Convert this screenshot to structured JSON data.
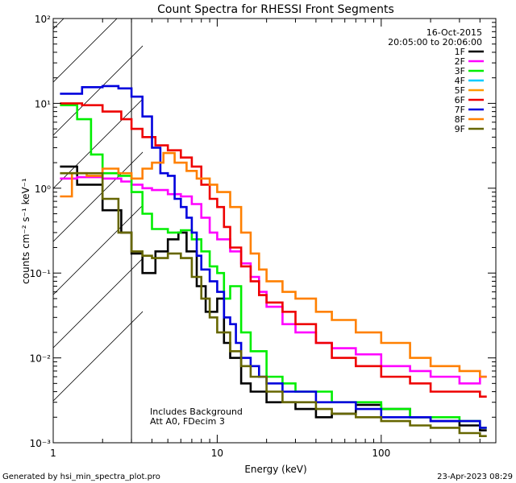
{
  "chart_data": {
    "type": "line",
    "title": "Count Spectra for RHESSI Front Segments",
    "xlabel": "Energy (keV)",
    "ylabel": "counts cm⁻² s⁻¹ keV⁻¹",
    "xscale": "log",
    "yscale": "log",
    "xlim": [
      1,
      500
    ],
    "ylim": [
      0.001,
      100
    ],
    "x_ticks": [
      "1",
      "10",
      "100"
    ],
    "y_ticks": [
      "10⁻³",
      "10⁻²",
      "10⁻¹",
      "10⁰",
      "10¹",
      "10²"
    ],
    "attenuator_threshold_kev": 3,
    "date": "16-Oct-2015",
    "time_range": "20:05:00 to 20:06:00",
    "annotation_lines": [
      "Includes Background",
      "Att A0, FDecim 3"
    ],
    "footer_left": "Generated by hsi_min_spectra_plot.pro",
    "footer_right": "23-Apr-2023 08:29",
    "series": [
      {
        "name": "1F",
        "color": "#000000",
        "points": [
          [
            1.1,
            1.8
          ],
          [
            1.4,
            1.1
          ],
          [
            2,
            0.55
          ],
          [
            2.6,
            0.3
          ],
          [
            3,
            0.17
          ],
          [
            3.5,
            0.1
          ],
          [
            4.2,
            0.18
          ],
          [
            5,
            0.25
          ],
          [
            5.8,
            0.3
          ],
          [
            6.5,
            0.18
          ],
          [
            7.5,
            0.07
          ],
          [
            8.5,
            0.035
          ],
          [
            10,
            0.05
          ],
          [
            11,
            0.015
          ],
          [
            12,
            0.01
          ],
          [
            14,
            0.005
          ],
          [
            16,
            0.004
          ],
          [
            20,
            0.003
          ],
          [
            25,
            0.003
          ],
          [
            30,
            0.0025
          ],
          [
            40,
            0.002
          ],
          [
            50,
            0.0022
          ],
          [
            70,
            0.0028
          ],
          [
            100,
            0.0025
          ],
          [
            150,
            0.002
          ],
          [
            200,
            0.0018
          ],
          [
            300,
            0.0016
          ],
          [
            400,
            0.0014
          ]
        ]
      },
      {
        "name": "2F",
        "color": "#ff00ff",
        "points": [
          [
            1.1,
            1.3
          ],
          [
            1.4,
            1.35
          ],
          [
            2,
            1.3
          ],
          [
            2.6,
            1.2
          ],
          [
            3,
            1.1
          ],
          [
            3.5,
            1.0
          ],
          [
            4,
            0.95
          ],
          [
            5,
            0.85
          ],
          [
            6,
            0.8
          ],
          [
            7,
            0.65
          ],
          [
            8,
            0.45
          ],
          [
            9,
            0.3
          ],
          [
            10,
            0.25
          ],
          [
            12,
            0.18
          ],
          [
            14,
            0.13
          ],
          [
            16,
            0.09
          ],
          [
            18,
            0.06
          ],
          [
            20,
            0.04
          ],
          [
            25,
            0.025
          ],
          [
            30,
            0.02
          ],
          [
            40,
            0.015
          ],
          [
            50,
            0.013
          ],
          [
            70,
            0.011
          ],
          [
            100,
            0.008
          ],
          [
            150,
            0.007
          ],
          [
            200,
            0.006
          ],
          [
            300,
            0.005
          ],
          [
            400,
            0.006
          ]
        ]
      },
      {
        "name": "3F",
        "color": "#00ee00",
        "points": [
          [
            1.1,
            9.5
          ],
          [
            1.4,
            6.5
          ],
          [
            1.7,
            2.5
          ],
          [
            2,
            1.5
          ],
          [
            2.5,
            1.4
          ],
          [
            3,
            0.9
          ],
          [
            3.5,
            0.5
          ],
          [
            4,
            0.33
          ],
          [
            5,
            0.3
          ],
          [
            6,
            0.32
          ],
          [
            7,
            0.25
          ],
          [
            8,
            0.18
          ],
          [
            9,
            0.12
          ],
          [
            10,
            0.1
          ],
          [
            11,
            0.05
          ],
          [
            12,
            0.07
          ],
          [
            14,
            0.02
          ],
          [
            16,
            0.012
          ],
          [
            20,
            0.006
          ],
          [
            25,
            0.005
          ],
          [
            30,
            0.004
          ],
          [
            40,
            0.004
          ],
          [
            50,
            0.003
          ],
          [
            70,
            0.003
          ],
          [
            100,
            0.0025
          ],
          [
            150,
            0.002
          ],
          [
            200,
            0.002
          ],
          [
            300,
            0.0018
          ],
          [
            400,
            0.0015
          ]
        ]
      },
      {
        "name": "4F",
        "color": "#00ccff",
        "points": []
      },
      {
        "name": "5F",
        "color": "#ff9900",
        "points": []
      },
      {
        "name": "6F",
        "color": "#ee0000",
        "points": [
          [
            1.1,
            10
          ],
          [
            1.5,
            9.5
          ],
          [
            2,
            8
          ],
          [
            2.6,
            6.5
          ],
          [
            3,
            5
          ],
          [
            3.5,
            4
          ],
          [
            4.2,
            3.2
          ],
          [
            5,
            2.8
          ],
          [
            6,
            2.3
          ],
          [
            7,
            1.8
          ],
          [
            8,
            1.1
          ],
          [
            9,
            0.75
          ],
          [
            10,
            0.6
          ],
          [
            11,
            0.35
          ],
          [
            12,
            0.2
          ],
          [
            14,
            0.12
          ],
          [
            16,
            0.08
          ],
          [
            18,
            0.055
          ],
          [
            20,
            0.045
          ],
          [
            25,
            0.035
          ],
          [
            30,
            0.025
          ],
          [
            40,
            0.015
          ],
          [
            50,
            0.01
          ],
          [
            70,
            0.008
          ],
          [
            100,
            0.006
          ],
          [
            150,
            0.005
          ],
          [
            200,
            0.004
          ],
          [
            300,
            0.004
          ],
          [
            400,
            0.0035
          ]
        ]
      },
      {
        "name": "7F",
        "color": "#0000dd",
        "points": [
          [
            1.1,
            13
          ],
          [
            1.5,
            15.5
          ],
          [
            2,
            16
          ],
          [
            2.5,
            15
          ],
          [
            3,
            12
          ],
          [
            3.5,
            7
          ],
          [
            4,
            3
          ],
          [
            4.5,
            1.5
          ],
          [
            5,
            1.4
          ],
          [
            5.5,
            0.75
          ],
          [
            6,
            0.6
          ],
          [
            6.5,
            0.45
          ],
          [
            7,
            0.3
          ],
          [
            7.5,
            0.16
          ],
          [
            8,
            0.11
          ],
          [
            9,
            0.08
          ],
          [
            10,
            0.06
          ],
          [
            11,
            0.03
          ],
          [
            12,
            0.025
          ],
          [
            13,
            0.015
          ],
          [
            14,
            0.01
          ],
          [
            16,
            0.008
          ],
          [
            18,
            0.006
          ],
          [
            20,
            0.005
          ],
          [
            25,
            0.004
          ],
          [
            30,
            0.004
          ],
          [
            40,
            0.003
          ],
          [
            50,
            0.003
          ],
          [
            70,
            0.0025
          ],
          [
            100,
            0.002
          ],
          [
            150,
            0.002
          ],
          [
            200,
            0.0018
          ],
          [
            300,
            0.0018
          ],
          [
            400,
            0.0015
          ]
        ]
      },
      {
        "name": "8F",
        "color": "#ff8000",
        "points": [
          [
            1.1,
            0.8
          ],
          [
            1.3,
            1.5
          ],
          [
            1.6,
            1.4
          ],
          [
            2,
            1.7
          ],
          [
            2.5,
            1.5
          ],
          [
            3,
            1.3
          ],
          [
            3.5,
            1.7
          ],
          [
            4,
            2.0
          ],
          [
            4.7,
            2.6
          ],
          [
            5.5,
            2.0
          ],
          [
            6.5,
            1.6
          ],
          [
            7.5,
            1.3
          ],
          [
            9,
            1.1
          ],
          [
            10,
            0.9
          ],
          [
            12,
            0.6
          ],
          [
            14,
            0.3
          ],
          [
            16,
            0.17
          ],
          [
            18,
            0.11
          ],
          [
            20,
            0.08
          ],
          [
            25,
            0.06
          ],
          [
            30,
            0.05
          ],
          [
            40,
            0.035
          ],
          [
            50,
            0.028
          ],
          [
            70,
            0.02
          ],
          [
            100,
            0.015
          ],
          [
            150,
            0.01
          ],
          [
            200,
            0.008
          ],
          [
            300,
            0.007
          ],
          [
            400,
            0.006
          ]
        ]
      },
      {
        "name": "9F",
        "color": "#666600",
        "points": [
          [
            1.1,
            1.5
          ],
          [
            1.4,
            1.5
          ],
          [
            2,
            0.75
          ],
          [
            2.5,
            0.3
          ],
          [
            3,
            0.18
          ],
          [
            3.5,
            0.16
          ],
          [
            4,
            0.15
          ],
          [
            5,
            0.17
          ],
          [
            6,
            0.15
          ],
          [
            7,
            0.09
          ],
          [
            8,
            0.05
          ],
          [
            9,
            0.03
          ],
          [
            10,
            0.02
          ],
          [
            12,
            0.012
          ],
          [
            14,
            0.008
          ],
          [
            16,
            0.006
          ],
          [
            20,
            0.004
          ],
          [
            25,
            0.003
          ],
          [
            30,
            0.003
          ],
          [
            40,
            0.0025
          ],
          [
            50,
            0.0022
          ],
          [
            70,
            0.002
          ],
          [
            100,
            0.0018
          ],
          [
            150,
            0.0016
          ],
          [
            200,
            0.0015
          ],
          [
            300,
            0.0013
          ],
          [
            400,
            0.0012
          ]
        ]
      }
    ]
  }
}
